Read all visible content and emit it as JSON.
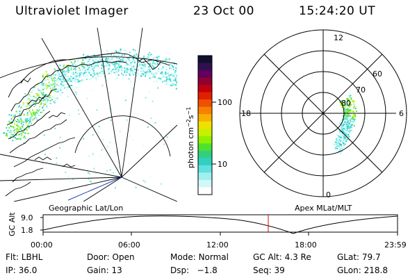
{
  "header": {
    "title": "Ultraviolet Imager",
    "date": "23 Oct 00",
    "time": "15:24:20 UT"
  },
  "geo_panel": {
    "label": "Geographic Lat/Lon"
  },
  "polar_panel": {
    "label": "Apex MLat/MLT",
    "mlt_labels": {
      "top": "12",
      "right": "6",
      "bottom": "0",
      "left": "18"
    },
    "lat_labels": [
      "60",
      "70",
      "80"
    ]
  },
  "colorbar": {
    "unit_label": "photon cm",
    "unit_sup1": "−2",
    "unit_mid": "s",
    "unit_sup2": "−1",
    "ticks": [
      "100",
      "10"
    ],
    "colors": [
      "#101030",
      "#301050",
      "#600060",
      "#900030",
      "#c00010",
      "#e02000",
      "#f05000",
      "#f88000",
      "#f8b000",
      "#f0e000",
      "#c8f000",
      "#90f000",
      "#50e030",
      "#30d080",
      "#30d0c0",
      "#60e0e0",
      "#a0f0f0",
      "#d0f8f8",
      "#ffffff"
    ]
  },
  "altitude_strip": {
    "axis_title": "GC Alt",
    "yticks": [
      "9.0",
      "1.8"
    ],
    "xticks": [
      "00:00",
      "06:00",
      "12:00",
      "18:00",
      "23:59"
    ],
    "marker_color": "#e00000"
  },
  "status": {
    "row1": [
      {
        "label": "Flt:",
        "value": "LBHL"
      },
      {
        "label": "Door:",
        "value": "Open"
      },
      {
        "label": "Mode:",
        "value": "Normal"
      },
      {
        "label": "GC Alt:",
        "value": "4.3 Re"
      },
      {
        "label": "GLat:",
        "value": "79.7"
      }
    ],
    "row2": [
      {
        "label": "IP:",
        "value": "36.0"
      },
      {
        "label": "Gain:",
        "value": "13"
      },
      {
        "label": "Dsp:",
        "value": "−1.8"
      },
      {
        "label": "Seq:",
        "value": "39"
      },
      {
        "label": "GLon:",
        "value": "218.8"
      }
    ]
  }
}
